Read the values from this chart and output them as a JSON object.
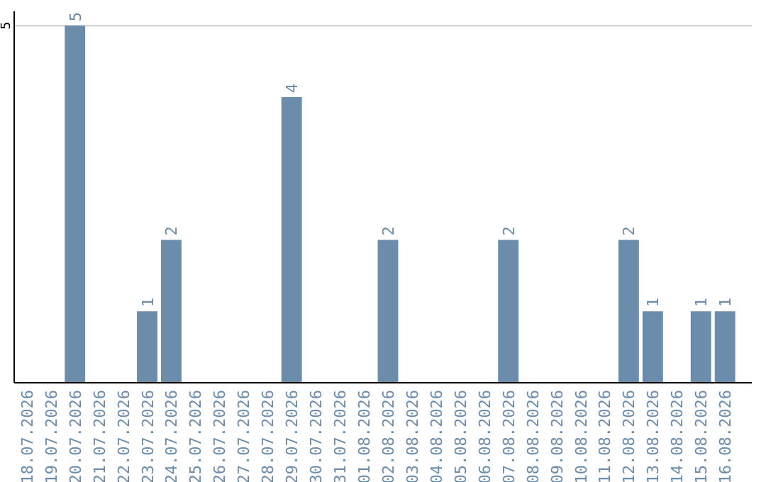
{
  "chart_data": {
    "type": "bar",
    "categories": [
      "18.07.2026",
      "19.07.2026",
      "20.07.2026",
      "21.07.2026",
      "22.07.2026",
      "23.07.2026",
      "24.07.2026",
      "25.07.2026",
      "26.07.2026",
      "27.07.2026",
      "28.07.2026",
      "29.07.2026",
      "30.07.2026",
      "31.07.2026",
      "01.08.2026",
      "02.08.2026",
      "03.08.2026",
      "04.08.2026",
      "05.08.2026",
      "06.08.2026",
      "07.08.2026",
      "08.08.2026",
      "09.08.2026",
      "10.08.2026",
      "11.08.2026",
      "12.08.2026",
      "13.08.2026",
      "14.08.2026",
      "15.08.2026",
      "16.08.2026"
    ],
    "values": [
      0,
      0,
      5,
      0,
      0,
      1,
      2,
      0,
      0,
      0,
      0,
      4,
      0,
      0,
      0,
      2,
      0,
      0,
      0,
      0,
      2,
      0,
      0,
      0,
      0,
      2,
      1,
      0,
      1,
      1
    ],
    "value_labels": [
      null,
      null,
      "5",
      null,
      null,
      "1",
      "2",
      null,
      null,
      null,
      null,
      "4",
      null,
      null,
      null,
      "2",
      null,
      null,
      null,
      null,
      "2",
      null,
      null,
      null,
      null,
      "2",
      "1",
      null,
      "1",
      "1"
    ],
    "color": "#6b8cab",
    "ylim": [
      0,
      5.2
    ],
    "yticks": [
      5
    ],
    "grid": "y"
  }
}
